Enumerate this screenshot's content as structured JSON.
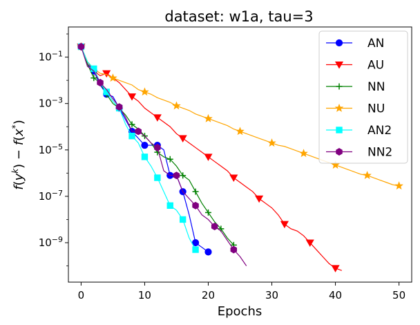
{
  "chart_data": {
    "type": "line",
    "title": "dataset: w1a, tau=3",
    "xlabel": "Epochs",
    "ylabel": "f(y^k) − f(x^*)",
    "yscale": "log",
    "xlim": [
      -2,
      52
    ],
    "ylim_exponent": [
      -10.7,
      0.3
    ],
    "xticks": [
      0,
      10,
      20,
      30,
      40,
      50
    ],
    "xtick_labels": [
      "0",
      "10",
      "20",
      "30",
      "40",
      "50"
    ],
    "yticks_exponent": [
      -9,
      -7,
      -5,
      -3,
      -1
    ],
    "ytick_labels": [
      {
        "base": "10",
        "exp": "−9"
      },
      {
        "base": "10",
        "exp": "−7"
      },
      {
        "base": "10",
        "exp": "−5"
      },
      {
        "base": "10",
        "exp": "−3"
      },
      {
        "base": "10",
        "exp": "−1"
      }
    ],
    "legend_location": "upper-right",
    "series": [
      {
        "name": "AN",
        "color": "#0000ff",
        "marker": "circle",
        "x": [
          0,
          1,
          2,
          3,
          4,
          5,
          6,
          7,
          8,
          9,
          10,
          11,
          12,
          13,
          14,
          15,
          16,
          17,
          18,
          19,
          20
        ],
        "y_exponent": [
          -0.55,
          -1.3,
          -1.6,
          -2.2,
          -2.6,
          -2.7,
          -3.2,
          -3.7,
          -4.2,
          -4.5,
          -4.8,
          -4.8,
          -4.8,
          -5.0,
          -6.1,
          -6.1,
          -6.8,
          -7.8,
          -9.0,
          -9.2,
          -9.4
        ],
        "marker_every": 2
      },
      {
        "name": "AU",
        "color": "#ff0000",
        "marker": "triangle-down",
        "x": [
          0,
          1,
          2,
          3,
          4,
          5,
          6,
          7,
          8,
          9,
          10,
          11,
          12,
          13,
          14,
          15,
          16,
          17,
          18,
          19,
          20,
          21,
          22,
          23,
          24,
          25,
          26,
          27,
          28,
          29,
          30,
          31,
          32,
          33,
          34,
          35,
          36,
          37,
          38,
          39,
          40,
          41
        ],
        "y_exponent": [
          -0.55,
          -1.2,
          -1.6,
          -1.8,
          -1.7,
          -1.9,
          -2.1,
          -2.4,
          -2.7,
          -2.9,
          -3.2,
          -3.4,
          -3.6,
          -3.8,
          -4.0,
          -4.3,
          -4.5,
          -4.7,
          -4.9,
          -5.1,
          -5.3,
          -5.5,
          -5.7,
          -5.9,
          -6.2,
          -6.4,
          -6.6,
          -6.8,
          -7.1,
          -7.3,
          -7.5,
          -7.8,
          -8.2,
          -8.4,
          -8.5,
          -8.7,
          -9.0,
          -9.3,
          -9.6,
          -9.9,
          -10.1,
          -10.2
        ],
        "marker_every": 4
      },
      {
        "name": "NN",
        "color": "#008000",
        "marker": "plus",
        "x": [
          0,
          1,
          2,
          3,
          4,
          5,
          6,
          7,
          8,
          9,
          10,
          11,
          12,
          13,
          14,
          15,
          16,
          17,
          18,
          19,
          20,
          21,
          22,
          23,
          24
        ],
        "y_exponent": [
          -0.55,
          -1.3,
          -1.9,
          -2.1,
          -2.6,
          -3.0,
          -3.2,
          -3.5,
          -3.9,
          -4.1,
          -4.4,
          -4.7,
          -5.1,
          -5.3,
          -5.4,
          -5.7,
          -6.1,
          -6.3,
          -6.8,
          -7.3,
          -7.7,
          -8.1,
          -8.4,
          -8.8,
          -9.1
        ],
        "marker_every": 2
      },
      {
        "name": "NU",
        "color": "#ffa500",
        "marker": "star",
        "x": [
          0,
          1,
          2,
          3,
          4,
          5,
          6,
          7,
          8,
          9,
          10,
          11,
          12,
          13,
          14,
          15,
          16,
          17,
          18,
          19,
          20,
          21,
          22,
          23,
          24,
          25,
          26,
          27,
          28,
          29,
          30,
          31,
          32,
          33,
          34,
          35,
          36,
          37,
          38,
          39,
          40,
          41,
          42,
          43,
          44,
          45,
          46,
          47,
          48,
          49,
          50
        ],
        "y_exponent": [
          -0.55,
          -1.2,
          -1.5,
          -1.7,
          -1.75,
          -1.9,
          -2.0,
          -2.1,
          -2.2,
          -2.4,
          -2.5,
          -2.6,
          -2.75,
          -2.85,
          -2.95,
          -3.1,
          -3.2,
          -3.3,
          -3.45,
          -3.55,
          -3.65,
          -3.75,
          -3.85,
          -3.95,
          -4.1,
          -4.2,
          -4.3,
          -4.4,
          -4.5,
          -4.6,
          -4.7,
          -4.8,
          -4.85,
          -4.95,
          -5.05,
          -5.15,
          -5.25,
          -5.35,
          -5.45,
          -5.55,
          -5.65,
          -5.75,
          -5.85,
          -5.95,
          -6.05,
          -6.1,
          -6.2,
          -6.3,
          -6.4,
          -6.5,
          -6.55
        ],
        "marker_every": 5
      },
      {
        "name": "AN2",
        "color": "#00ffff",
        "marker": "square",
        "x": [
          0,
          1,
          2,
          3,
          4,
          5,
          6,
          7,
          8,
          9,
          10,
          11,
          12,
          13,
          14,
          15,
          16,
          17,
          18
        ],
        "y_exponent": [
          -0.55,
          -1.2,
          -1.5,
          -2.1,
          -2.5,
          -2.9,
          -3.2,
          -3.9,
          -4.4,
          -4.7,
          -5.3,
          -5.7,
          -6.2,
          -6.8,
          -7.4,
          -7.6,
          -8.0,
          -8.8,
          -9.3
        ],
        "marker_every": 2
      },
      {
        "name": "NN2",
        "color": "#800080",
        "marker": "hexagon",
        "x": [
          0,
          1,
          2,
          3,
          4,
          5,
          6,
          7,
          8,
          9,
          10,
          11,
          12,
          13,
          14,
          15,
          16,
          17,
          18,
          19,
          20,
          21,
          22,
          23,
          24,
          25,
          26
        ],
        "y_exponent": [
          -0.55,
          -1.4,
          -1.6,
          -2.1,
          -2.4,
          -2.8,
          -3.15,
          -3.6,
          -4.2,
          -4.2,
          -4.4,
          -4.7,
          -4.9,
          -5.9,
          -6.1,
          -6.1,
          -6.8,
          -7.1,
          -7.4,
          -7.8,
          -8.0,
          -8.3,
          -8.5,
          -8.9,
          -9.3,
          -9.6,
          -10.0
        ],
        "marker_every": 3
      }
    ]
  }
}
